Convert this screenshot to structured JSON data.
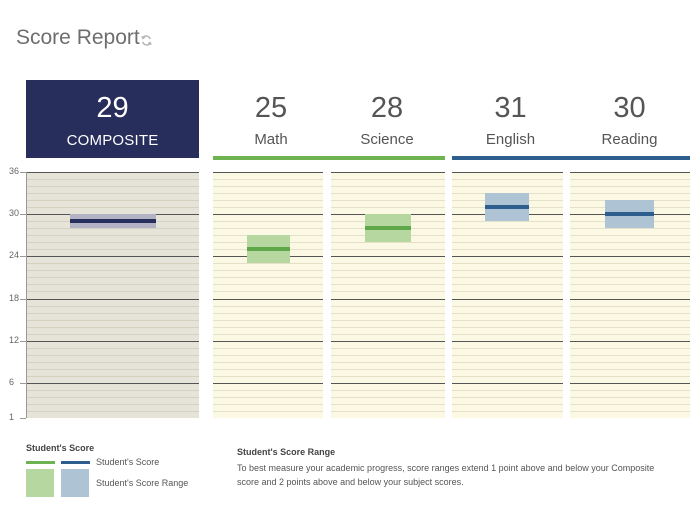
{
  "header": {
    "title": "Score Report",
    "refresh_icon": "refresh-icon"
  },
  "composite": {
    "score": "29",
    "label": "COMPOSITE",
    "score_value": 29,
    "range": [
      28,
      30
    ]
  },
  "subjects": [
    {
      "key": "math",
      "score": "25",
      "label": "Math",
      "score_value": 25,
      "range": [
        23,
        27
      ]
    },
    {
      "key": "science",
      "score": "28",
      "label": "Science",
      "score_value": 28,
      "range": [
        26,
        30
      ]
    },
    {
      "key": "english",
      "score": "31",
      "label": "English",
      "score_value": 31,
      "range": [
        29,
        33
      ]
    },
    {
      "key": "reading",
      "score": "30",
      "label": "Reading",
      "score_value": 30,
      "range": [
        28,
        32
      ]
    }
  ],
  "axis": {
    "min": 1,
    "max": 36,
    "ticks": [
      "36",
      "30",
      "24",
      "18",
      "12",
      "6",
      "1"
    ]
  },
  "colors": {
    "composite_bg": "#272e5c",
    "composite_score": "#272e5c",
    "composite_range": "#b3b1c4",
    "math_science_line": "#6db352",
    "math_science_score": "#5ea84a",
    "math_science_range": "#b6d7a0",
    "english_reading_line": "#2d5e8e",
    "english_reading_score": "#2d5e8e",
    "english_reading_range": "#aec3d3"
  },
  "legend": {
    "title": "Student's Score",
    "score_label": "Student's Score",
    "range_label": "Student's Score Range"
  },
  "range_info": {
    "title": "Student's Score Range",
    "description": "To best measure your academic progress, score ranges extend 1 point above and below your Composite score and 2 points above and below your subject scores."
  }
}
